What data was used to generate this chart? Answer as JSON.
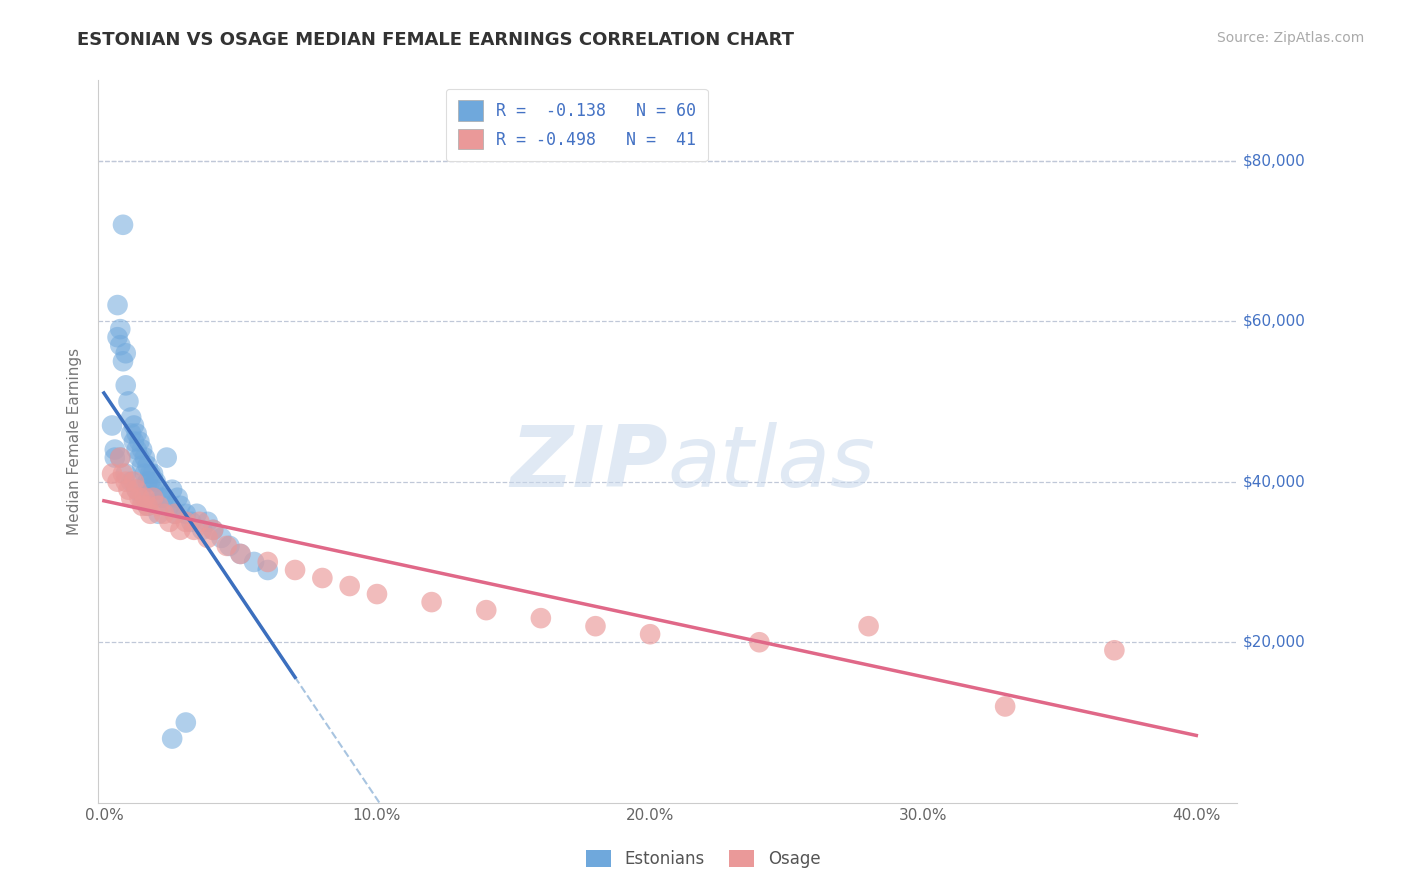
{
  "title": "ESTONIAN VS OSAGE MEDIAN FEMALE EARNINGS CORRELATION CHART",
  "source": "Source: ZipAtlas.com",
  "ylabel": "Median Female Earnings",
  "xlim": [
    -0.002,
    0.415
  ],
  "ylim": [
    0,
    90000
  ],
  "yticks": [
    20000,
    40000,
    60000,
    80000
  ],
  "ytick_labels": [
    "$20,000",
    "$40,000",
    "$60,000",
    "$80,000"
  ],
  "xtick_labels": [
    "0.0%",
    "10.0%",
    "20.0%",
    "30.0%",
    "40.0%"
  ],
  "xticks": [
    0.0,
    0.1,
    0.2,
    0.3,
    0.4
  ],
  "blue_color": "#6fa8dc",
  "pink_color": "#ea9999",
  "line_blue": "#3c6fbe",
  "line_pink": "#e06888",
  "dash_color": "#a8c4e0",
  "text_color": "#4472c4",
  "yaxis_color": "#4472c4",
  "background_color": "#ffffff",
  "grid_color": "#c0c8d8",
  "estonian_x": [
    0.003,
    0.004,
    0.005,
    0.005,
    0.006,
    0.006,
    0.007,
    0.007,
    0.008,
    0.008,
    0.009,
    0.01,
    0.01,
    0.011,
    0.011,
    0.012,
    0.012,
    0.013,
    0.013,
    0.014,
    0.014,
    0.015,
    0.015,
    0.016,
    0.016,
    0.017,
    0.017,
    0.018,
    0.018,
    0.019,
    0.02,
    0.021,
    0.022,
    0.023,
    0.024,
    0.025,
    0.026,
    0.027,
    0.028,
    0.03,
    0.032,
    0.034,
    0.036,
    0.038,
    0.04,
    0.043,
    0.046,
    0.05,
    0.055,
    0.06,
    0.004,
    0.006,
    0.008,
    0.01,
    0.012,
    0.014,
    0.016,
    0.02,
    0.025,
    0.03
  ],
  "estonian_y": [
    47000,
    43000,
    62000,
    58000,
    59000,
    57000,
    72000,
    55000,
    56000,
    52000,
    50000,
    48000,
    46000,
    47000,
    45000,
    44000,
    46000,
    43000,
    45000,
    44000,
    42000,
    43000,
    41000,
    42000,
    40000,
    41000,
    40000,
    39000,
    41000,
    40000,
    39000,
    38000,
    38000,
    43000,
    37000,
    39000,
    36000,
    38000,
    37000,
    36000,
    35000,
    36000,
    34000,
    35000,
    34000,
    33000,
    32000,
    31000,
    30000,
    29000,
    44000,
    43000,
    41000,
    40000,
    39000,
    38000,
    37000,
    36000,
    8000,
    10000
  ],
  "osage_x": [
    0.003,
    0.005,
    0.006,
    0.007,
    0.008,
    0.009,
    0.01,
    0.011,
    0.012,
    0.013,
    0.014,
    0.015,
    0.016,
    0.017,
    0.018,
    0.02,
    0.022,
    0.024,
    0.026,
    0.028,
    0.03,
    0.033,
    0.035,
    0.038,
    0.04,
    0.045,
    0.05,
    0.06,
    0.07,
    0.08,
    0.09,
    0.1,
    0.12,
    0.14,
    0.16,
    0.18,
    0.2,
    0.24,
    0.28,
    0.33,
    0.37
  ],
  "osage_y": [
    41000,
    40000,
    43000,
    41000,
    40000,
    39000,
    38000,
    40000,
    39000,
    38000,
    37000,
    38000,
    37000,
    36000,
    38000,
    37000,
    36000,
    35000,
    36000,
    34000,
    35000,
    34000,
    35000,
    33000,
    34000,
    32000,
    31000,
    30000,
    29000,
    28000,
    27000,
    26000,
    25000,
    24000,
    23000,
    22000,
    21000,
    20000,
    22000,
    12000,
    19000
  ],
  "est_line_x0": 0.0,
  "est_line_x1": 0.07,
  "osage_line_x0": 0.0,
  "osage_line_x1": 0.4,
  "dash_line_x0": 0.0,
  "dash_line_x1": 0.415
}
